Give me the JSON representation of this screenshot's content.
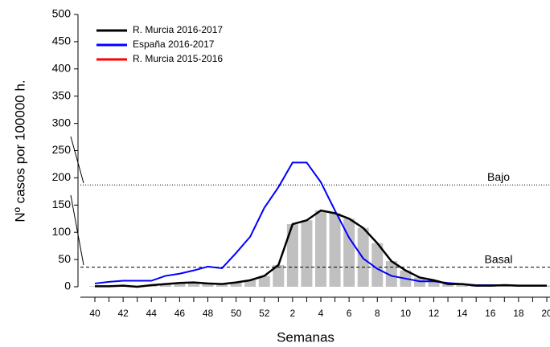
{
  "chart_data": {
    "type": "line",
    "x_label": "Semanas",
    "y_label": "Nº casos por 100000 h.",
    "categories": [
      "40",
      null,
      "42",
      null,
      "44",
      null,
      "46",
      null,
      "48",
      null,
      "50",
      null,
      "52",
      null,
      "2",
      null,
      "4",
      null,
      "6",
      null,
      "8",
      null,
      "10",
      null,
      "12",
      null,
      "14",
      null,
      "16",
      null,
      "18",
      null,
      "20"
    ],
    "series": [
      {
        "name": "R. Murcia 2016-2017",
        "color": "#000000",
        "bars_color": "#c0c0c0",
        "values": [
          1,
          1,
          2,
          0,
          3,
          5,
          7,
          8,
          6,
          5,
          8,
          12,
          20,
          40,
          115,
          122,
          140,
          135,
          125,
          108,
          80,
          47,
          30,
          17,
          12,
          5,
          5,
          2,
          2,
          3,
          2,
          2,
          2
        ]
      },
      {
        "name": "España 2016-2017",
        "color": "#0000ff",
        "values": [
          6,
          9,
          11,
          11,
          11,
          20,
          24,
          30,
          37,
          34,
          62,
          92,
          145,
          183,
          228,
          228,
          192,
          140,
          90,
          52,
          33,
          20,
          15,
          10,
          10,
          7,
          5,
          3,
          3,
          3,
          2,
          2,
          2
        ]
      },
      {
        "name": "R. Murcia 2015-2016",
        "color": "#ff0000",
        "values": [
          null,
          null,
          null,
          null,
          null,
          null,
          null,
          null,
          null,
          null,
          null,
          null,
          null,
          null,
          null,
          null,
          null,
          null,
          null,
          null,
          null,
          null,
          null,
          null,
          null,
          null,
          null,
          null,
          null,
          null,
          null,
          null,
          null
        ]
      }
    ],
    "thresholds": [
      {
        "label": "Bajo",
        "value": 187,
        "style": "dotted"
      },
      {
        "label": "Basal",
        "value": 36,
        "style": "dashed"
      }
    ],
    "ylim": [
      0,
      500
    ],
    "yticks": [
      0,
      50,
      100,
      150,
      200,
      250,
      300,
      350,
      400,
      450,
      500
    ],
    "legend": "top-left"
  }
}
